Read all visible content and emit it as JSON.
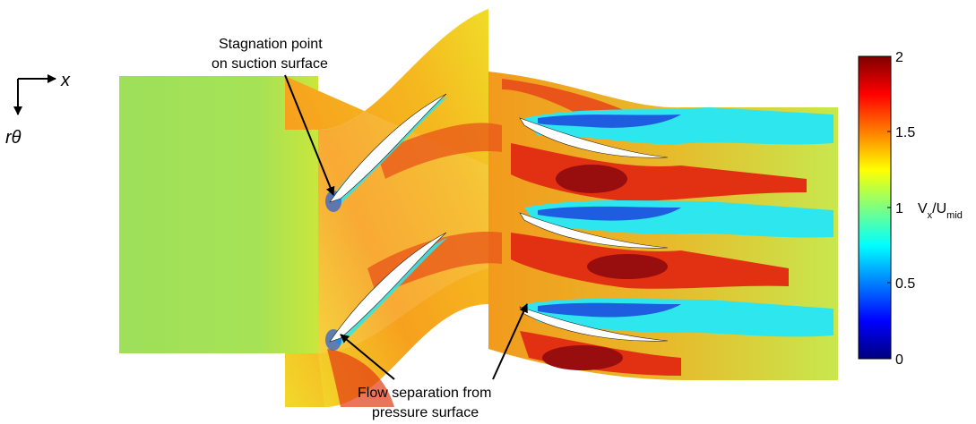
{
  "axes": {
    "x_label": "x",
    "theta_label": "rθ"
  },
  "annotations": {
    "stagnation": [
      "Stagnation point",
      "on suction surface"
    ],
    "separation": [
      "Flow separation from",
      "pressure surface"
    ]
  },
  "colorbar": {
    "ticks": [
      "2",
      "1.5",
      "1",
      "0.5",
      "0"
    ],
    "label_main": "V",
    "label_sub1": "x",
    "label_mid": "/U",
    "label_sub2": "mid",
    "range": [
      0,
      2
    ],
    "colors": [
      "#00007f",
      "#0000ff",
      "#007fff",
      "#00ffff",
      "#7fff7f",
      "#ffff00",
      "#ff7f00",
      "#ff0000",
      "#7f0000"
    ]
  },
  "palette": {
    "inflow": "#9ee05a",
    "yellow": "#f1e024",
    "orange": "#f7a51e",
    "red": "#e23012",
    "darkred": "#980d0d",
    "cyan": "#2ee6ee",
    "blue": "#1f5de0",
    "blade": "#ffffff"
  }
}
